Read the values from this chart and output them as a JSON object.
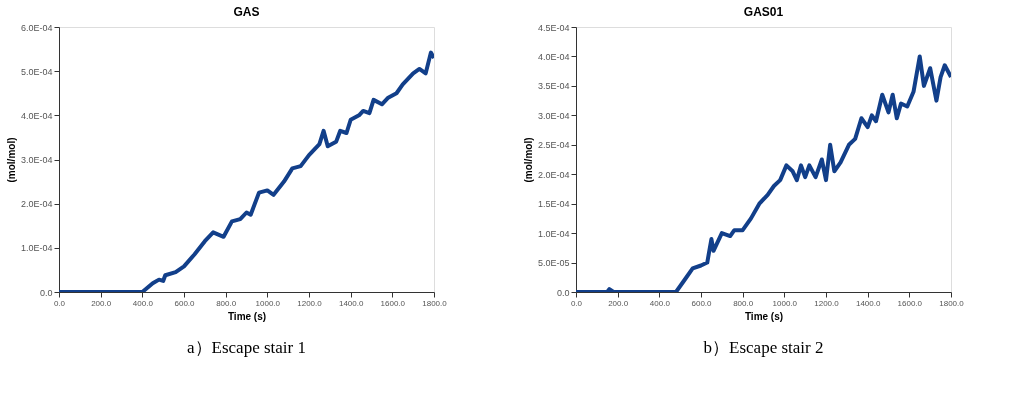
{
  "chart_data": [
    {
      "type": "line",
      "title": "GAS",
      "xlabel": "Time (s)",
      "ylabel": "(mol/mol)",
      "annotations": [
        "a）Escape stair 1"
      ],
      "xlim": [
        0,
        1800
      ],
      "ylim": [
        0,
        0.0006
      ],
      "xticks": [
        {
          "value": 0,
          "label": "0.0"
        },
        {
          "value": 200,
          "label": "200.0"
        },
        {
          "value": 400,
          "label": "400.0"
        },
        {
          "value": 600,
          "label": "600.0"
        },
        {
          "value": 800,
          "label": "800.0"
        },
        {
          "value": 1000,
          "label": "1000.0"
        },
        {
          "value": 1200,
          "label": "1200.0"
        },
        {
          "value": 1400,
          "label": "1400.0"
        },
        {
          "value": 1600,
          "label": "1600.0"
        },
        {
          "value": 1800,
          "label": "1800.0"
        }
      ],
      "yticks": [
        {
          "value": 0,
          "label": "0.0"
        },
        {
          "value": 0.0001,
          "label": "1.0E-04"
        },
        {
          "value": 0.0002,
          "label": "2.0E-04"
        },
        {
          "value": 0.0003,
          "label": "3.0E-04"
        },
        {
          "value": 0.0004,
          "label": "4.0E-04"
        },
        {
          "value": 0.0005,
          "label": "5.0E-04"
        },
        {
          "value": 0.0006,
          "label": "6.0E-04"
        }
      ],
      "x": [
        0,
        350,
        400,
        450,
        480,
        500,
        510,
        560,
        600,
        650,
        700,
        740,
        790,
        830,
        870,
        900,
        920,
        960,
        1000,
        1030,
        1080,
        1120,
        1160,
        1200,
        1250,
        1270,
        1290,
        1330,
        1350,
        1380,
        1400,
        1440,
        1460,
        1490,
        1510,
        1550,
        1580,
        1620,
        1650,
        1700,
        1730,
        1760,
        1785,
        1800
      ],
      "series": [
        {
          "color": "#123f8a",
          "values": [
            0,
            0,
            0,
            2e-05,
            2.8e-05,
            2.5e-05,
            3.8e-05,
            4.5e-05,
            5.8e-05,
            8.5e-05,
            0.000115,
            0.000135,
            0.000125,
            0.00016,
            0.000165,
            0.00018,
            0.000175,
            0.000225,
            0.00023,
            0.00022,
            0.00025,
            0.00028,
            0.000285,
            0.00031,
            0.000335,
            0.000365,
            0.00033,
            0.00034,
            0.000365,
            0.00036,
            0.00039,
            0.0004,
            0.00041,
            0.000405,
            0.000435,
            0.000425,
            0.00044,
            0.00045,
            0.00047,
            0.000495,
            0.000505,
            0.000495,
            0.000542,
            0.00053
          ]
        }
      ]
    },
    {
      "type": "line",
      "title": "GAS01",
      "xlabel": "Time (s)",
      "ylabel": "(mol/mol)",
      "annotations": [
        "b）Escape stair 2"
      ],
      "xlim": [
        0,
        1800
      ],
      "ylim": [
        0,
        0.00045
      ],
      "xticks": [
        {
          "value": 0,
          "label": "0.0"
        },
        {
          "value": 200,
          "label": "200.0"
        },
        {
          "value": 400,
          "label": "400.0"
        },
        {
          "value": 600,
          "label": "600.0"
        },
        {
          "value": 800,
          "label": "800.0"
        },
        {
          "value": 1000,
          "label": "1000.0"
        },
        {
          "value": 1200,
          "label": "1200.0"
        },
        {
          "value": 1400,
          "label": "1400.0"
        },
        {
          "value": 1600,
          "label": "1600.0"
        },
        {
          "value": 1800,
          "label": "1800.0"
        }
      ],
      "yticks": [
        {
          "value": 0,
          "label": "0.0"
        },
        {
          "value": 5e-05,
          "label": "5.0E-05"
        },
        {
          "value": 0.0001,
          "label": "1.0E-04"
        },
        {
          "value": 0.00015,
          "label": "1.5E-04"
        },
        {
          "value": 0.0002,
          "label": "2.0E-04"
        },
        {
          "value": 0.00025,
          "label": "2.5E-04"
        },
        {
          "value": 0.0003,
          "label": "3.0E-04"
        },
        {
          "value": 0.00035,
          "label": "3.5E-04"
        },
        {
          "value": 0.0004,
          "label": "4.0E-04"
        },
        {
          "value": 0.00045,
          "label": "4.5E-04"
        }
      ],
      "x": [
        0,
        150,
        160,
        180,
        400,
        480,
        520,
        560,
        600,
        630,
        650,
        660,
        700,
        740,
        760,
        800,
        840,
        880,
        920,
        950,
        980,
        1010,
        1040,
        1060,
        1080,
        1100,
        1120,
        1150,
        1180,
        1200,
        1220,
        1240,
        1270,
        1310,
        1340,
        1370,
        1400,
        1420,
        1440,
        1470,
        1500,
        1520,
        1540,
        1560,
        1590,
        1620,
        1650,
        1670,
        1700,
        1730,
        1750,
        1770,
        1800
      ],
      "series": [
        {
          "color": "#123f8a",
          "values": [
            0,
            0,
            5e-06,
            0,
            0,
            0,
            2e-05,
            4e-05,
            4.5e-05,
            5e-05,
            9e-05,
            7e-05,
            0.0001,
            9.5e-05,
            0.000105,
            0.000105,
            0.000125,
            0.00015,
            0.000165,
            0.00018,
            0.00019,
            0.000215,
            0.000205,
            0.00019,
            0.000215,
            0.000195,
            0.000215,
            0.000195,
            0.000225,
            0.00019,
            0.00025,
            0.000205,
            0.00022,
            0.00025,
            0.00026,
            0.000295,
            0.00028,
            0.0003,
            0.00029,
            0.000335,
            0.000305,
            0.000335,
            0.000295,
            0.00032,
            0.000315,
            0.00034,
            0.0004,
            0.00035,
            0.00038,
            0.000325,
            0.000365,
            0.000385,
            0.000365
          ]
        }
      ]
    }
  ]
}
